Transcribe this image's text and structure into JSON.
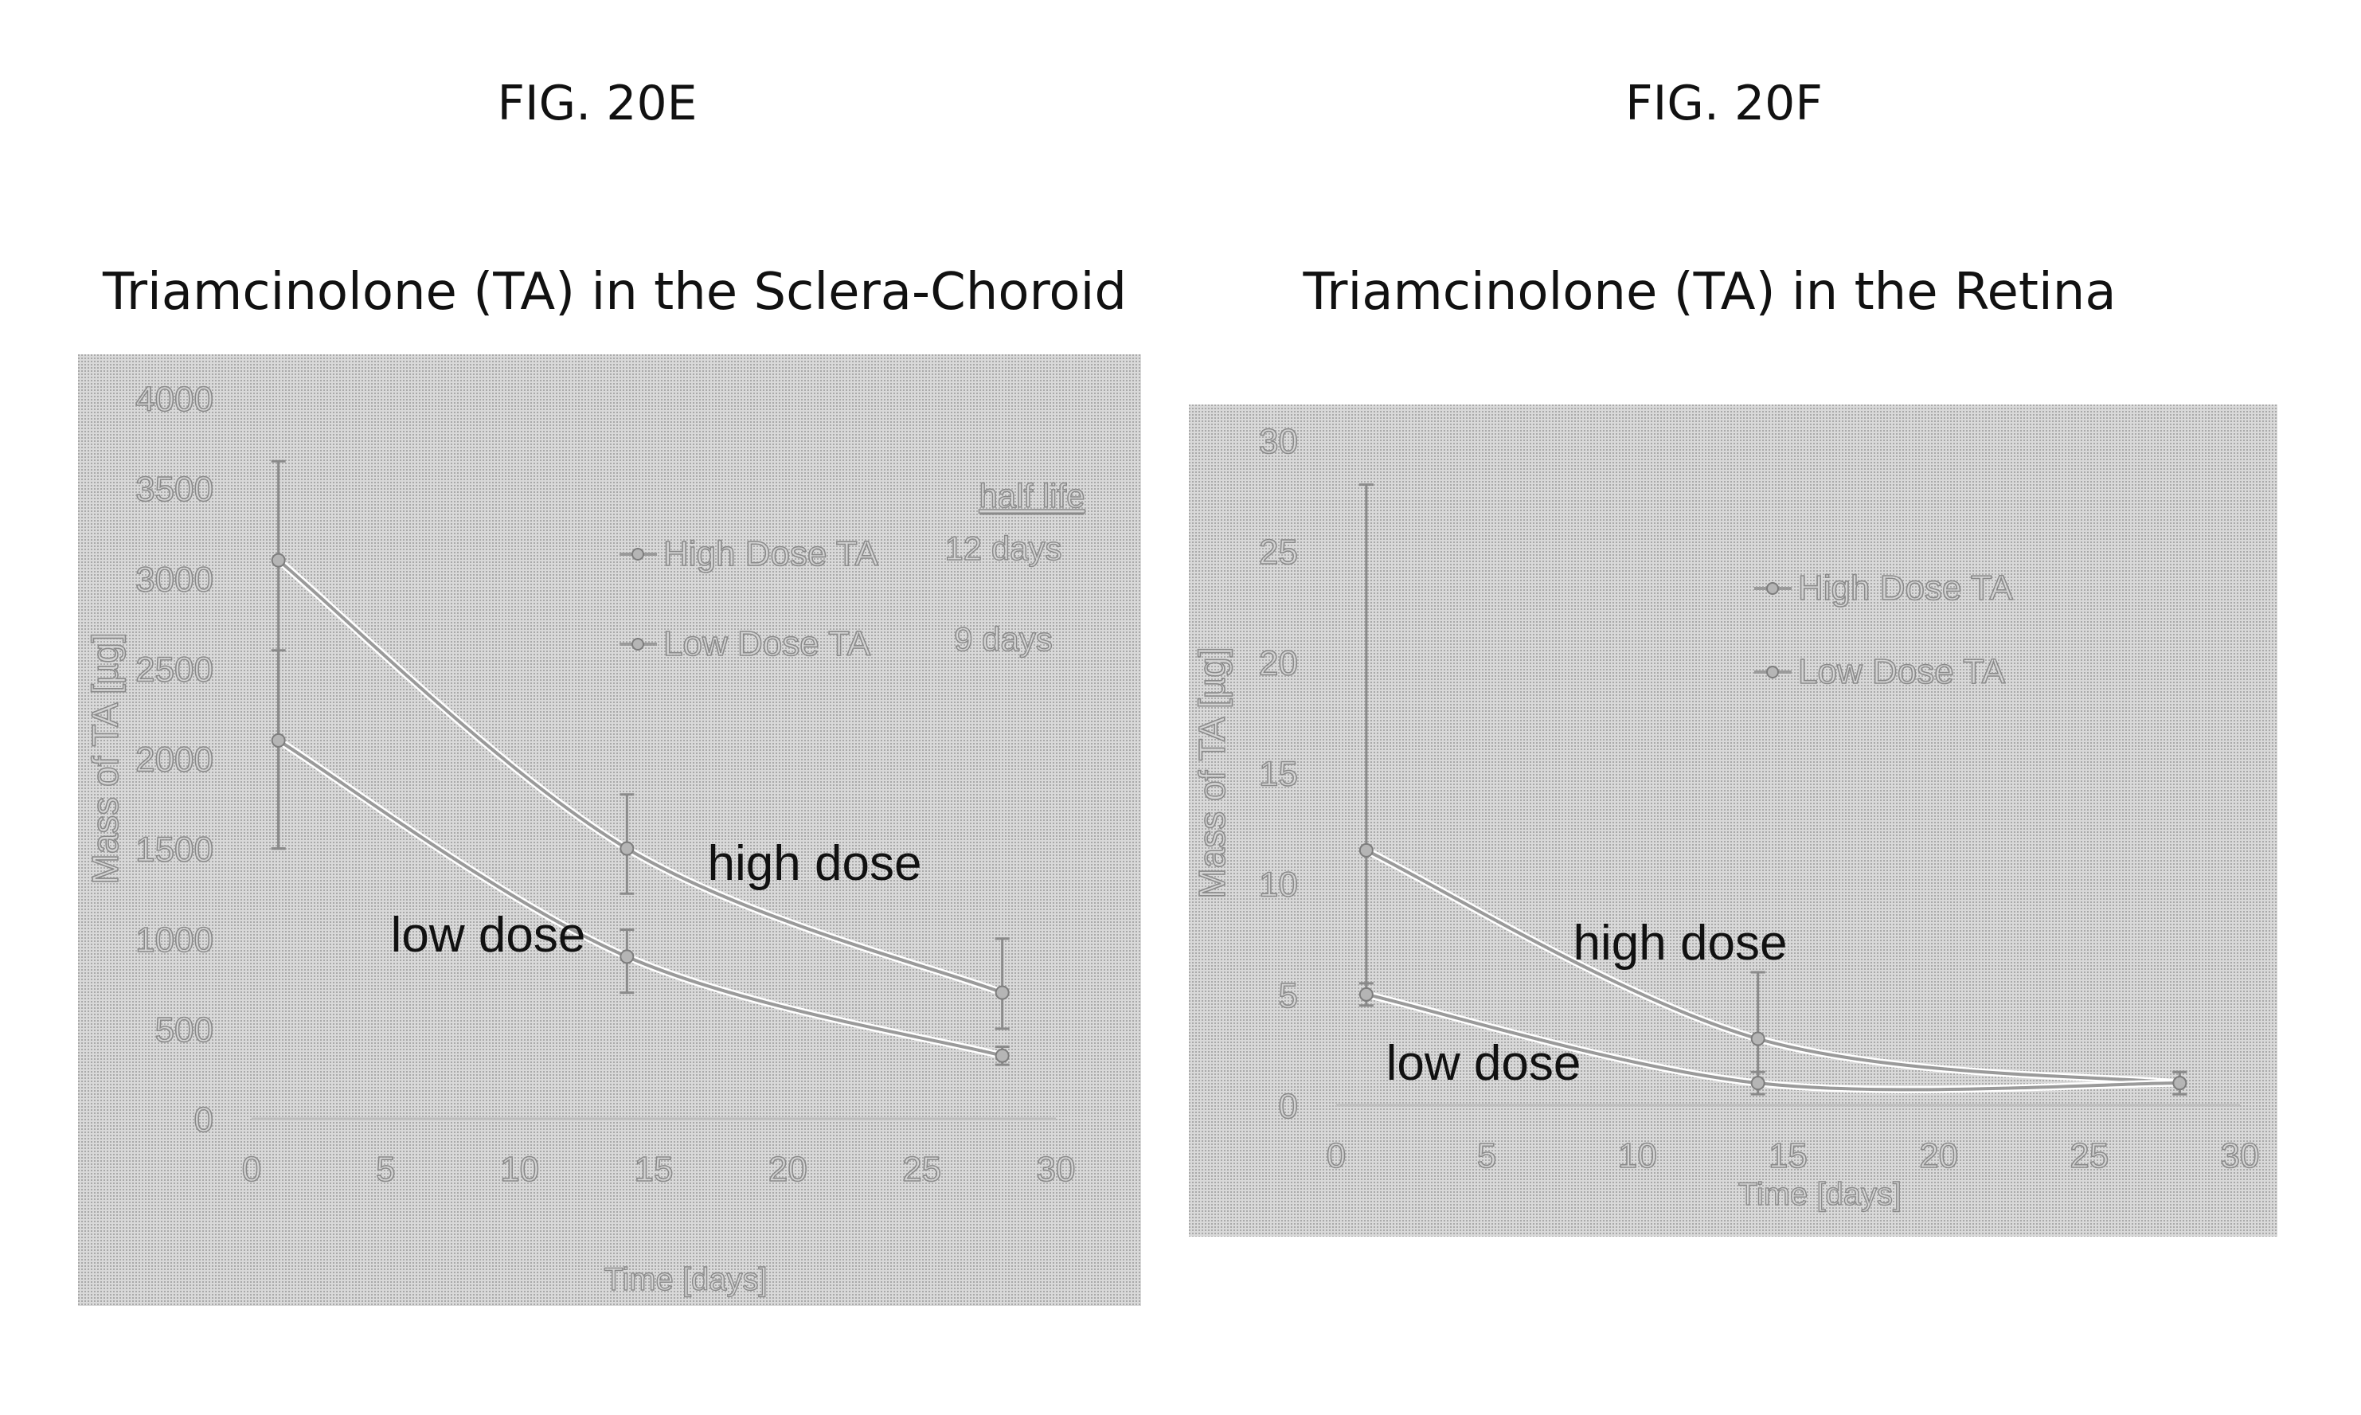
{
  "figures": {
    "left_label": "FIG. 20E",
    "right_label": "FIG. 20F"
  },
  "chart_data": [
    {
      "type": "line",
      "title": "Triamcinolone (TA) in the Sclera-Choroid",
      "xlabel": "Time [days]",
      "ylabel": "Mass of TA [µg]",
      "xlim": [
        0,
        30
      ],
      "ylim": [
        0,
        4000
      ],
      "xticks": [
        "0",
        "5",
        "10",
        "15",
        "20",
        "25",
        "30"
      ],
      "yticks": [
        "0",
        "500",
        "1000",
        "1500",
        "2000",
        "2500",
        "3000",
        "3500",
        "4000"
      ],
      "legend_title": "half life",
      "legend_placement": "upper-right",
      "grid": false,
      "series": [
        {
          "name": "High Dose TA",
          "half_life": "12 days",
          "annotation": "high dose",
          "points": [
            [
              1,
              3100
            ],
            [
              14,
              1500
            ],
            [
              28,
              700
            ]
          ],
          "error": [
            [
              1,
              1500,
              3650
            ],
            [
              14,
              1250,
              1800
            ],
            [
              28,
              500,
              1000
            ]
          ]
        },
        {
          "name": "Low Dose TA",
          "half_life": "9 days",
          "annotation": "low dose",
          "points": [
            [
              1,
              2100
            ],
            [
              14,
              900
            ],
            [
              28,
              350
            ]
          ],
          "error": [
            [
              1,
              1500,
              2600
            ],
            [
              14,
              700,
              1050
            ],
            [
              28,
              300,
              400
            ]
          ]
        }
      ]
    },
    {
      "type": "line",
      "title": "Triamcinolone (TA) in the Retina",
      "xlabel": "Time [days]",
      "ylabel": "Mass of TA [µg]",
      "xlim": [
        0,
        30
      ],
      "ylim": [
        0,
        30
      ],
      "xticks": [
        "0",
        "5",
        "10",
        "15",
        "20",
        "25",
        "30"
      ],
      "yticks": [
        "0",
        "5",
        "10",
        "15",
        "20",
        "25",
        "30"
      ],
      "legend_placement": "upper-right",
      "grid": false,
      "series": [
        {
          "name": "High Dose TA",
          "annotation": "high dose",
          "points": [
            [
              1,
              11.5
            ],
            [
              14,
              3
            ],
            [
              28,
              1
            ]
          ],
          "error": [
            [
              1,
              5,
              28
            ],
            [
              14,
              1,
              6
            ],
            [
              28,
              0.5,
              1.5
            ]
          ]
        },
        {
          "name": "Low Dose TA",
          "annotation": "low dose",
          "points": [
            [
              1,
              5
            ],
            [
              14,
              1
            ],
            [
              28,
              1
            ]
          ],
          "error": [
            [
              1,
              4.5,
              5.5
            ],
            [
              14,
              0.5,
              1.5
            ],
            [
              28,
              0.5,
              1.5
            ]
          ]
        }
      ]
    }
  ]
}
